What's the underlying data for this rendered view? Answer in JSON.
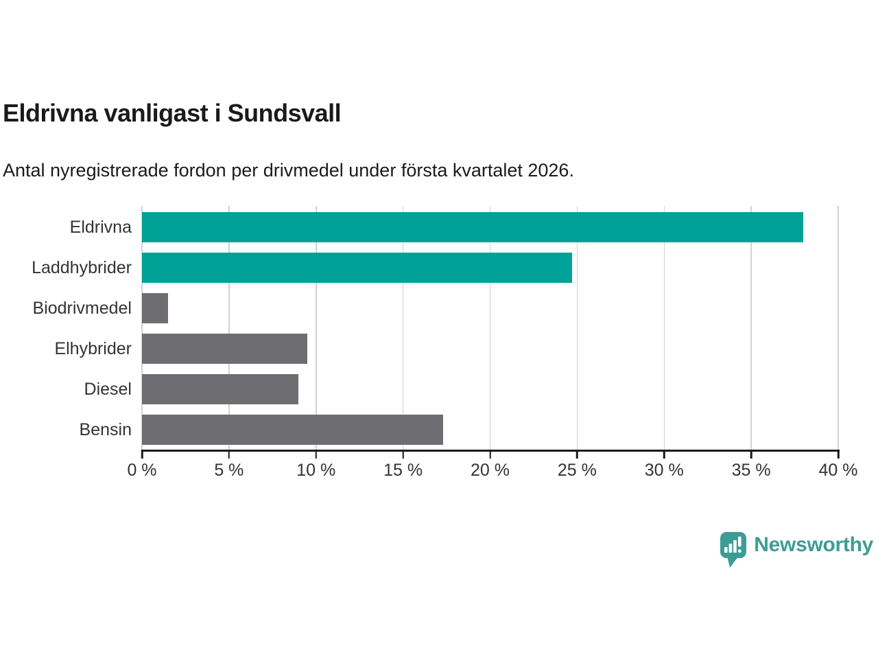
{
  "chart_data": {
    "type": "bar",
    "orientation": "horizontal",
    "title": "Eldrivna vanligast i Sundsvall",
    "subtitle": "Antal nyregistrerade fordon per drivmedel under första kvartalet 2026.",
    "categories": [
      "Eldrivna",
      "Laddhybrider",
      "Biodrivmedel",
      "Elhybrider",
      "Diesel",
      "Bensin"
    ],
    "values": [
      38.0,
      24.7,
      1.5,
      9.5,
      9.0,
      17.3
    ],
    "unit": "%",
    "bar_colors": [
      "#00a196",
      "#00a196",
      "#6e6e72",
      "#6e6e72",
      "#6e6e72",
      "#6e6e72"
    ],
    "xlim": [
      0,
      40
    ],
    "xticks": [
      0,
      5,
      10,
      15,
      20,
      25,
      30,
      35,
      40
    ],
    "xtick_labels": [
      "0 %",
      "5 %",
      "10 %",
      "15 %",
      "20 %",
      "25 %",
      "30 %",
      "35 %",
      "40 %"
    ],
    "grid": "vertical-only",
    "legend": "none"
  },
  "colors": {
    "accent_teal": "#00a196",
    "bar_gray": "#6e6e72",
    "gridline": "#d2d2d2",
    "axis_line": "#1a1a1a",
    "label_text": "#333333",
    "logo_teal": "#3d9c96"
  },
  "logo": {
    "text": "Newsworthy",
    "icon": "speech-bubble-bar-chart-icon"
  }
}
